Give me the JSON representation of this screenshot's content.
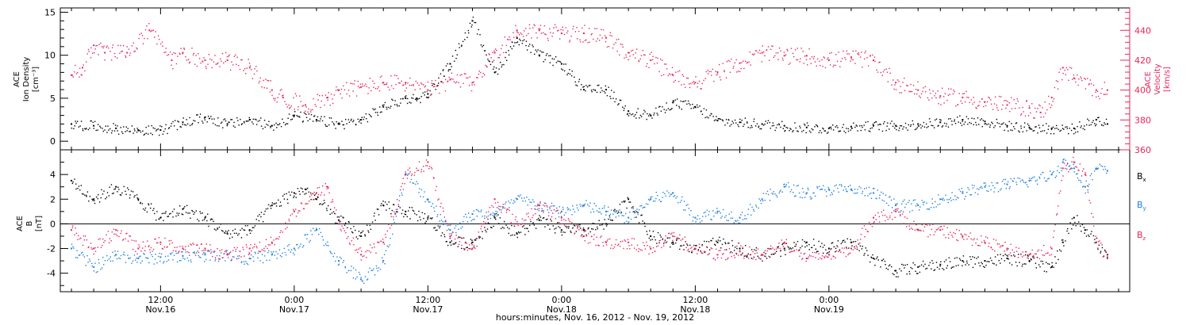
{
  "colors": {
    "black": "#000000",
    "red": "#e8265a",
    "blue": "#1e7fe0",
    "axis": "#000000"
  },
  "xaxis": {
    "title": "hours:minutes, Nov. 16, 2012 - Nov. 19, 2012",
    "ticks": [
      {
        "time": "12:00",
        "date": "Nov.16"
      },
      {
        "time": "0:00",
        "date": "Nov.17"
      },
      {
        "time": "12:00",
        "date": "Nov.17"
      },
      {
        "time": "0:00",
        "date": "Nov.18"
      },
      {
        "time": "12:00",
        "date": "Nov.18"
      },
      {
        "time": "0:00",
        "date": "Nov.19"
      }
    ]
  },
  "top_panel": {
    "left_label": [
      "ACE",
      "Ion Density",
      "[cm⁻³]"
    ],
    "right_label": [
      "ACE",
      "Velocity",
      "[km/s]"
    ],
    "left_ticks": [
      "0",
      "5",
      "10",
      "15"
    ],
    "right_ticks": [
      "360",
      "380",
      "400",
      "420",
      "440"
    ]
  },
  "bottom_panel": {
    "left_label": [
      "ACE",
      "B",
      "[nT]"
    ],
    "left_ticks": [
      "-4",
      "-2",
      "0",
      "2",
      "4"
    ],
    "legend": [
      {
        "base": "B",
        "sub": "x",
        "color": "#000000"
      },
      {
        "base": "B",
        "sub": "y",
        "color": "#1e7fe0"
      },
      {
        "base": "B",
        "sub": "z",
        "color": "#e8265a"
      }
    ]
  },
  "chart_data": [
    {
      "type": "scatter",
      "title": "",
      "xlabel": "hours:minutes, Nov. 16, 2012 - Nov. 19, 2012",
      "x_units": "hours since Nov. 16 00:00",
      "xlim": [
        3,
        99
      ],
      "series": [
        {
          "name": "Ion Density",
          "axis": "left",
          "ylim": [
            -1,
            15.5
          ],
          "color": "#000000",
          "x": [
            4,
            6,
            8,
            10,
            12,
            14,
            16,
            18,
            20,
            22,
            24,
            26,
            28,
            30,
            32,
            34,
            35,
            36,
            38,
            40,
            42,
            44,
            46,
            48,
            50,
            52,
            54,
            56,
            58,
            60,
            62,
            64,
            66,
            68,
            70,
            72,
            74,
            76,
            78,
            80,
            82,
            84,
            86,
            88,
            90,
            92,
            94,
            96,
            97
          ],
          "y": [
            2,
            1.8,
            1.5,
            1.3,
            1.3,
            2.2,
            2.8,
            2,
            2.5,
            1.8,
            3,
            2.5,
            2,
            2.5,
            4,
            5,
            5,
            5.5,
            9,
            14,
            8,
            12,
            10,
            9,
            6,
            6,
            3.5,
            3,
            4.5,
            4,
            2.4,
            2.2,
            2,
            1.8,
            1.6,
            1.5,
            1.7,
            1.8,
            1.8,
            2,
            2.2,
            2.5,
            2.3,
            1.8,
            1.6,
            1.5,
            1.5,
            2.5,
            2
          ]
        },
        {
          "name": "Velocity",
          "axis": "right",
          "ylim": [
            360,
            455
          ],
          "color": "#e8265a",
          "x": [
            4,
            5,
            6,
            7,
            9,
            11,
            13,
            14,
            16,
            18,
            20,
            22,
            23,
            25,
            27,
            28,
            30,
            32,
            34,
            36,
            38,
            40,
            42,
            44,
            46,
            48,
            50,
            52,
            54,
            56,
            58,
            60,
            62,
            64,
            66,
            68,
            70,
            72,
            74,
            76,
            78,
            80,
            82,
            84,
            86,
            88,
            90,
            91,
            92,
            93,
            94,
            96,
            97
          ],
          "y": [
            410,
            415,
            430,
            425,
            425,
            440,
            420,
            425,
            420,
            420,
            415,
            400,
            395,
            390,
            395,
            400,
            402,
            405,
            405,
            400,
            407,
            405,
            425,
            440,
            440,
            438,
            438,
            435,
            425,
            420,
            410,
            405,
            412,
            418,
            425,
            423,
            423,
            420,
            422,
            420,
            405,
            400,
            396,
            395,
            392,
            390,
            388,
            385,
            395,
            415,
            408,
            400,
            400
          ]
        }
      ]
    },
    {
      "type": "scatter",
      "title": "",
      "xlabel": "hours:minutes, Nov. 16, 2012 - Nov. 19, 2012",
      "x_units": "hours since Nov. 16 00:00",
      "xlim": [
        3,
        99
      ],
      "ylabel": "B [nT]",
      "ylim": [
        -5.5,
        6
      ],
      "series": [
        {
          "name": "Bx",
          "color": "#000000",
          "x": [
            4,
            6,
            8,
            10,
            12,
            14,
            16,
            18,
            20,
            22,
            24,
            25,
            26,
            28,
            30,
            32,
            34,
            36,
            38,
            40,
            42,
            44,
            46,
            48,
            50,
            52,
            54,
            56,
            58,
            60,
            62,
            64,
            66,
            68,
            70,
            72,
            74,
            76,
            78,
            80,
            82,
            84,
            86,
            88,
            90,
            92,
            93,
            94,
            95,
            96,
            97
          ],
          "y": [
            3.5,
            2,
            3,
            2,
            0.5,
            1.2,
            0.5,
            -0.8,
            -0.5,
            1.5,
            2.5,
            2.8,
            2,
            0.3,
            -1,
            1.5,
            1,
            0.5,
            -1.5,
            -1.5,
            0.5,
            -0.8,
            0.3,
            -0.5,
            -0.5,
            0,
            2,
            -1,
            -1.5,
            -2,
            -1.5,
            -2,
            -2.5,
            -2,
            -1.5,
            -2,
            -1.5,
            -2.8,
            -3.8,
            -3.5,
            -3.3,
            -3,
            -3,
            -2.8,
            -3,
            -3.5,
            -1.5,
            0.5,
            -0.5,
            -1.5,
            -2.5
          ]
        },
        {
          "name": "By",
          "color": "#1e7fe0",
          "x": [
            4,
            6,
            8,
            10,
            12,
            14,
            16,
            18,
            20,
            22,
            24,
            26,
            28,
            30,
            32,
            34,
            36,
            38,
            40,
            42,
            44,
            46,
            48,
            50,
            52,
            54,
            56,
            58,
            60,
            62,
            64,
            66,
            68,
            70,
            72,
            74,
            76,
            78,
            80,
            82,
            84,
            86,
            88,
            90,
            92,
            93,
            94,
            95,
            96,
            97
          ],
          "y": [
            -2,
            -3.5,
            -2.5,
            -2.8,
            -2.7,
            -2.6,
            -2.5,
            -2.5,
            -2.8,
            -2.5,
            -2,
            -0.5,
            -3,
            -4.5,
            -3,
            4,
            2,
            -0.5,
            0.8,
            0.8,
            2,
            1.5,
            1,
            1.5,
            1,
            0.5,
            2,
            2.5,
            0.5,
            1,
            0.5,
            2,
            3,
            2.5,
            2.8,
            2.8,
            2.5,
            1.5,
            1.5,
            2,
            2.5,
            3,
            3.2,
            3.5,
            4,
            5,
            4.5,
            3,
            4.5,
            4.3
          ]
        },
        {
          "name": "Bz",
          "color": "#e8265a",
          "x": [
            4,
            6,
            8,
            10,
            12,
            14,
            16,
            18,
            20,
            22,
            24,
            26,
            27,
            28,
            30,
            32,
            34,
            36,
            38,
            40,
            42,
            44,
            46,
            48,
            50,
            52,
            54,
            56,
            58,
            60,
            62,
            64,
            66,
            68,
            70,
            72,
            74,
            76,
            78,
            80,
            82,
            84,
            86,
            88,
            90,
            92,
            93,
            94,
            95,
            96,
            97
          ],
          "y": [
            -0.5,
            -2,
            -0.5,
            -2,
            -1.5,
            -2,
            -2,
            -2.5,
            -2,
            -1.5,
            1,
            2.5,
            3,
            0,
            -2.5,
            -1.5,
            4,
            5,
            -1,
            -2,
            2,
            0,
            1.5,
            0.5,
            -1,
            -1.5,
            -1.5,
            -2,
            -1,
            -2,
            -2.5,
            -2.2,
            -2.5,
            -1.5,
            -2.8,
            -2.5,
            -2,
            0.5,
            1,
            -0.5,
            -0.5,
            -1,
            -1.5,
            -2,
            -2.5,
            -2,
            4.5,
            5,
            4,
            -1.5,
            -2.8
          ]
        }
      ]
    }
  ]
}
